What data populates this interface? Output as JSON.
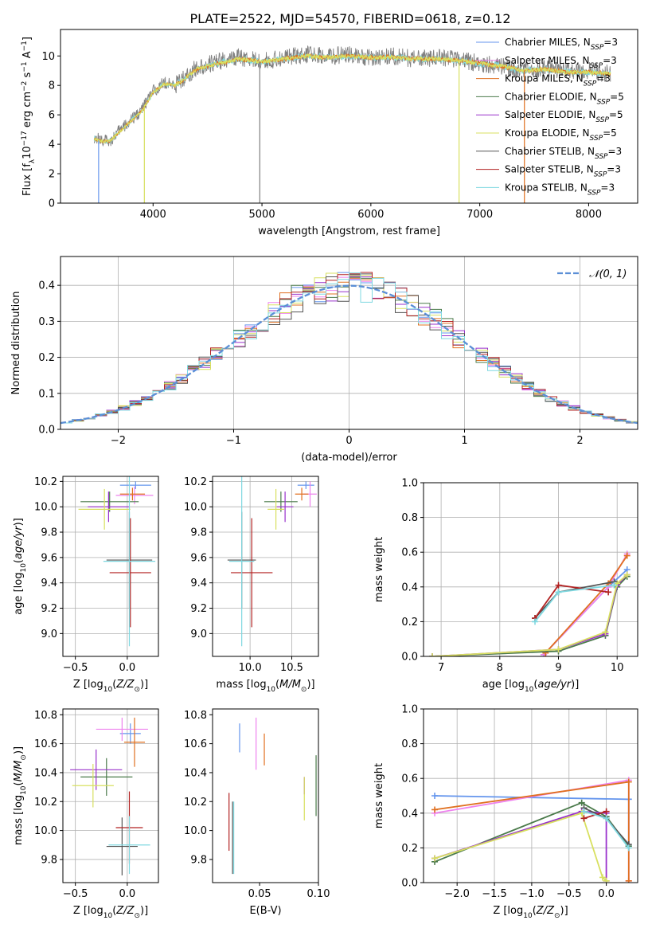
{
  "figure_title": "PLATE=2522, MJD=54570, FIBERID=0618, z=0.12",
  "palette": {
    "Chabrier MILES": "#6495ed",
    "Salpeter MILES": "#ee82ee",
    "Kroupa MILES": "#e07020",
    "Chabrier ELODIE": "#4a7a4a",
    "Salpeter ELODIE": "#9932cc",
    "Kroupa ELODIE": "#d8e060",
    "Chabrier STELIB": "#555555",
    "Salpeter STELIB": "#b22222",
    "Kroupa STELIB": "#7fd8e0"
  },
  "chart_data": [
    {
      "id": "spectrum",
      "type": "line",
      "title": "PLATE=2522, MJD=54570, FIBERID=0618, z=0.12",
      "xlabel": "wavelength [Angstrom, rest frame]",
      "ylabel": "Flux [fλ10⁻¹⁷ erg cm⁻² s⁻¹ A⁻¹]",
      "xlim": [
        3150,
        8450
      ],
      "ylim": [
        0,
        11.8
      ],
      "xticks": [
        4000,
        5000,
        6000,
        7000,
        8000
      ],
      "yticks": [
        0,
        2,
        4,
        6,
        8,
        10
      ],
      "legend_position": "right",
      "legend": [
        {
          "label": "Chabrier MILES, N",
          "sub": "SSP",
          "tail": "=3"
        },
        {
          "label": "Salpeter MILES, N",
          "sub": "SSP",
          "tail": "=3"
        },
        {
          "label": "Kroupa MILES, N",
          "sub": "SSP",
          "tail": "=3"
        },
        {
          "label": "Chabrier ELODIE, N",
          "sub": "SSP",
          "tail": "=5"
        },
        {
          "label": "Salpeter ELODIE, N",
          "sub": "SSP",
          "tail": "=5"
        },
        {
          "label": "Kroupa ELODIE, N",
          "sub": "SSP",
          "tail": "=5"
        },
        {
          "label": "Chabrier STELIB, N",
          "sub": "SSP",
          "tail": "=3"
        },
        {
          "label": "Salpeter STELIB, N",
          "sub": "SSP",
          "tail": "=3"
        },
        {
          "label": "Kroupa STELIB, N",
          "sub": "SSP",
          "tail": "=3"
        }
      ],
      "x": [
        3460,
        3520,
        3600,
        3700,
        3800,
        3900,
        4000,
        4100,
        4200,
        4300,
        4400,
        4600,
        4800,
        5000,
        5200,
        5400,
        5600,
        5800,
        6000,
        6200,
        6400,
        6600,
        6800,
        7000,
        7200,
        7400,
        7600,
        7800,
        8000,
        8200
      ],
      "data_flux": [
        4.5,
        4.3,
        4.2,
        5.0,
        5.6,
        6.4,
        7.6,
        8.2,
        8.0,
        8.6,
        9.2,
        9.6,
        9.9,
        9.6,
        9.9,
        10.1,
        10.0,
        10.1,
        9.9,
        10.0,
        9.8,
        9.9,
        9.8,
        9.5,
        9.3,
        9.0,
        9.2,
        8.9,
        9.0,
        8.8
      ],
      "model_flux": [
        4.4,
        4.2,
        4.2,
        4.9,
        5.6,
        6.3,
        7.5,
        8.1,
        8.0,
        8.5,
        9.1,
        9.5,
        9.8,
        9.6,
        9.8,
        10.0,
        9.9,
        10.0,
        9.9,
        9.9,
        9.8,
        9.8,
        9.7,
        9.5,
        9.3,
        9.0,
        9.1,
        8.9,
        8.9,
        8.8
      ],
      "dropouts": [
        3500,
        3920,
        4980,
        6810,
        7410
      ]
    },
    {
      "id": "residuals",
      "type": "histogram",
      "xlabel": "(data-model)/error",
      "ylabel": "Normed distribution",
      "xlim": [
        -2.5,
        2.5
      ],
      "ylim": [
        0,
        0.48
      ],
      "xticks": [
        -2,
        -1,
        0,
        1,
        2
      ],
      "yticks": [
        0.0,
        0.1,
        0.2,
        0.3,
        0.4
      ],
      "grid": true,
      "legend_position": "top-right",
      "gaussian_label": "𝒩(0, 1)",
      "bin_width": 0.1
    },
    {
      "id": "age-vs-Z",
      "type": "errorbar",
      "xlabel": "Z [log10(Z/Z⊙)]",
      "ylabel": "age  [log10(age/yr)]",
      "xlim": [
        -0.62,
        0.3
      ],
      "ylim": [
        8.82,
        10.24
      ],
      "xticks": [
        -0.5,
        0.0
      ],
      "yticks": [
        9.0,
        9.2,
        9.4,
        9.6,
        9.8,
        10.0,
        10.2
      ],
      "grid": true,
      "points": [
        {
          "model": "Chabrier MILES",
          "x": 0.08,
          "y": 10.17,
          "xerr": 0.15,
          "yerr": 0.03
        },
        {
          "model": "Salpeter MILES",
          "x": 0.07,
          "y": 10.09,
          "xerr": 0.18,
          "yerr": 0.07
        },
        {
          "model": "Kroupa MILES",
          "x": 0.05,
          "y": 10.1,
          "xerr": 0.12,
          "yerr": 0.05
        },
        {
          "model": "Chabrier ELODIE",
          "x": -0.17,
          "y": 10.04,
          "xerr": 0.28,
          "yerr": 0.08
        },
        {
          "model": "Salpeter ELODIE",
          "x": -0.18,
          "y": 10.0,
          "xerr": 0.2,
          "yerr": 0.12
        },
        {
          "model": "Kroupa ELODIE",
          "x": -0.22,
          "y": 9.98,
          "xerr": 0.25,
          "yerr": 0.16
        },
        {
          "model": "Chabrier STELIB",
          "x": 0.02,
          "y": 9.58,
          "xerr": 0.22,
          "yerr": 0.38
        },
        {
          "model": "Salpeter STELIB",
          "x": 0.03,
          "y": 9.48,
          "xerr": 0.2,
          "yerr": 0.43
        },
        {
          "model": "Kroupa STELIB",
          "x": 0.02,
          "y": 9.57,
          "xerr": 0.25,
          "yerr": 0.67
        }
      ]
    },
    {
      "id": "age-vs-mass",
      "type": "errorbar",
      "xlabel": "mass [log10(M/M⊙)]",
      "ylabel": "",
      "xlim": [
        9.55,
        10.82
      ],
      "ylim": [
        8.82,
        10.24
      ],
      "xticks": [
        10.0,
        10.5
      ],
      "yticks": [
        9.0,
        9.2,
        9.4,
        9.6,
        9.8,
        10.0,
        10.2
      ],
      "grid": true,
      "points": [
        {
          "model": "Chabrier MILES",
          "x": 10.67,
          "y": 10.17,
          "xerr": 0.1,
          "yerr": 0.03
        },
        {
          "model": "Salpeter MILES",
          "x": 10.72,
          "y": 10.1,
          "xerr": 0.08,
          "yerr": 0.1
        },
        {
          "model": "Kroupa MILES",
          "x": 10.62,
          "y": 10.1,
          "xerr": 0.08,
          "yerr": 0.05
        },
        {
          "model": "Chabrier ELODIE",
          "x": 10.37,
          "y": 10.04,
          "xerr": 0.2,
          "yerr": 0.08
        },
        {
          "model": "Salpeter ELODIE",
          "x": 10.42,
          "y": 10.0,
          "xerr": 0.1,
          "yerr": 0.12
        },
        {
          "model": "Kroupa ELODIE",
          "x": 10.31,
          "y": 9.98,
          "xerr": 0.1,
          "yerr": 0.16
        },
        {
          "model": "Chabrier STELIB",
          "x": 9.9,
          "y": 9.58,
          "xerr": 0.17,
          "yerr": 0.38
        },
        {
          "model": "Salpeter STELIB",
          "x": 10.02,
          "y": 9.48,
          "xerr": 0.25,
          "yerr": 0.43
        },
        {
          "model": "Kroupa STELIB",
          "x": 9.9,
          "y": 9.57,
          "xerr": 0.15,
          "yerr": 0.67
        }
      ]
    },
    {
      "id": "mass-weight-vs-age",
      "type": "line",
      "xlabel": "age  [log10(age/yr)]",
      "ylabel": "mass weight",
      "xlim": [
        6.7,
        10.35
      ],
      "ylim": [
        0.0,
        1.0
      ],
      "xticks": [
        7,
        8,
        9,
        10
      ],
      "yticks": [
        0.0,
        0.2,
        0.4,
        0.6,
        0.8,
        1.0
      ],
      "grid": true,
      "series": [
        {
          "model": "Chabrier MILES",
          "x": [
            8.75,
            9.85,
            10.17
          ],
          "y": [
            0.01,
            0.4,
            0.5
          ]
        },
        {
          "model": "Salpeter MILES",
          "x": [
            8.75,
            9.85,
            10.17
          ],
          "y": [
            0.01,
            0.4,
            0.59
          ]
        },
        {
          "model": "Kroupa MILES",
          "x": [
            8.78,
            9.85,
            10.17
          ],
          "y": [
            0.02,
            0.42,
            0.58
          ]
        },
        {
          "model": "Chabrier ELODIE",
          "x": [
            6.85,
            9.0,
            9.8,
            10.0,
            10.17
          ],
          "y": [
            0.0,
            0.03,
            0.12,
            0.4,
            0.46
          ]
        },
        {
          "model": "Salpeter ELODIE",
          "x": [
            6.85,
            9.0,
            9.8,
            10.0,
            10.17
          ],
          "y": [
            0.0,
            0.04,
            0.13,
            0.41,
            0.47
          ]
        },
        {
          "model": "Kroupa ELODIE",
          "x": [
            6.85,
            9.0,
            9.8,
            10.0,
            10.17
          ],
          "y": [
            0.0,
            0.04,
            0.14,
            0.42,
            0.47
          ]
        },
        {
          "model": "Chabrier STELIB",
          "x": [
            8.6,
            9.0,
            9.95
          ],
          "y": [
            0.22,
            0.37,
            0.43
          ]
        },
        {
          "model": "Salpeter STELIB",
          "x": [
            8.6,
            9.0,
            9.85
          ],
          "y": [
            0.22,
            0.41,
            0.37
          ]
        },
        {
          "model": "Kroupa STELIB",
          "x": [
            8.6,
            9.0,
            9.95
          ],
          "y": [
            0.2,
            0.37,
            0.41
          ]
        }
      ]
    },
    {
      "id": "mass-vs-Z",
      "type": "errorbar",
      "xlabel": "Z [log10(Z/Z⊙)]",
      "ylabel": "mass [log10(M/M⊙)]",
      "xlim": [
        -0.62,
        0.3
      ],
      "ylim": [
        9.64,
        10.84
      ],
      "xticks": [
        -0.5,
        0.0
      ],
      "yticks": [
        9.8,
        10.0,
        10.2,
        10.4,
        10.6,
        10.8
      ],
      "grid": true,
      "points": [
        {
          "model": "Chabrier MILES",
          "x": 0.03,
          "y": 10.67,
          "xerr": 0.1,
          "yerr": 0.07
        },
        {
          "model": "Salpeter MILES",
          "x": -0.05,
          "y": 10.7,
          "xerr": 0.25,
          "yerr": 0.08
        },
        {
          "model": "Kroupa MILES",
          "x": 0.07,
          "y": 10.61,
          "xerr": 0.1,
          "yerr": 0.17
        },
        {
          "model": "Chabrier ELODIE",
          "x": -0.2,
          "y": 10.37,
          "xerr": 0.25,
          "yerr": 0.13
        },
        {
          "model": "Salpeter ELODIE",
          "x": -0.3,
          "y": 10.42,
          "xerr": 0.25,
          "yerr": 0.14
        },
        {
          "model": "Kroupa ELODIE",
          "x": -0.33,
          "y": 10.31,
          "xerr": 0.2,
          "yerr": 0.15
        },
        {
          "model": "Chabrier STELIB",
          "x": -0.05,
          "y": 9.89,
          "xerr": 0.15,
          "yerr": 0.2
        },
        {
          "model": "Salpeter STELIB",
          "x": 0.02,
          "y": 10.02,
          "xerr": 0.13,
          "yerr": 0.25
        },
        {
          "model": "Kroupa STELIB",
          "x": 0.02,
          "y": 9.9,
          "xerr": 0.2,
          "yerr": 0.2
        }
      ]
    },
    {
      "id": "mass-vs-EBV",
      "type": "errorbar",
      "xlabel": "E(B-V)",
      "ylabel": "",
      "xlim": [
        0.01,
        0.1
      ],
      "ylim": [
        9.64,
        10.84
      ],
      "xticks": [
        0.05,
        0.1
      ],
      "yticks": [
        9.8,
        10.0,
        10.2,
        10.4,
        10.6,
        10.8
      ],
      "grid": false,
      "points": [
        {
          "model": "Chabrier MILES",
          "x": 0.033,
          "y": 10.64,
          "xerr": 0,
          "yerr": 0.1
        },
        {
          "model": "Salpeter MILES",
          "x": 0.047,
          "y": 10.6,
          "xerr": 0,
          "yerr": 0.18
        },
        {
          "model": "Kroupa MILES",
          "x": 0.054,
          "y": 10.56,
          "xerr": 0,
          "yerr": 0.11
        },
        {
          "model": "Chabrier ELODIE",
          "x": 0.098,
          "y": 10.31,
          "xerr": 0,
          "yerr": 0.21
        },
        {
          "model": "Salpeter ELODIE",
          "x": 0.088,
          "y": 10.31,
          "xerr": 0,
          "yerr": 0.06
        },
        {
          "model": "Kroupa ELODIE",
          "x": 0.088,
          "y": 10.22,
          "xerr": 0,
          "yerr": 0.15
        },
        {
          "model": "Chabrier STELIB",
          "x": 0.027,
          "y": 9.95,
          "xerr": 0,
          "yerr": 0.25
        },
        {
          "model": "Salpeter STELIB",
          "x": 0.024,
          "y": 10.06,
          "xerr": 0,
          "yerr": 0.2
        },
        {
          "model": "Kroupa STELIB",
          "x": 0.028,
          "y": 9.95,
          "xerr": 0,
          "yerr": 0.25
        }
      ]
    },
    {
      "id": "mass-weight-vs-Z",
      "type": "line",
      "xlabel": "Z [log10(Z/Z⊙)]",
      "ylabel": "mass weight",
      "xlim": [
        -2.45,
        0.42
      ],
      "ylim": [
        0.0,
        1.0
      ],
      "xticks": [
        -2.0,
        -1.5,
        -1.0,
        -0.5,
        0.0
      ],
      "yticks": [
        0.0,
        0.2,
        0.4,
        0.6,
        0.8,
        1.0
      ],
      "grid": true,
      "series": [
        {
          "model": "Chabrier MILES",
          "x": [
            -2.3,
            0.3,
            0.3
          ],
          "y": [
            0.5,
            0.48,
            0.21
          ]
        },
        {
          "model": "Salpeter MILES",
          "x": [
            -2.3,
            0.3,
            0.3
          ],
          "y": [
            0.4,
            0.59,
            0.01
          ]
        },
        {
          "model": "Kroupa MILES",
          "x": [
            -2.3,
            0.3,
            0.3
          ],
          "y": [
            0.42,
            0.58,
            0.01
          ]
        },
        {
          "model": "Chabrier ELODIE",
          "x": [
            -2.3,
            -0.33,
            0.0,
            0.3
          ],
          "y": [
            0.12,
            0.46,
            0.38,
            0.21
          ]
        },
        {
          "model": "Salpeter ELODIE",
          "x": [
            -2.3,
            -0.33,
            0.0,
            0.0
          ],
          "y": [
            0.14,
            0.41,
            0.4,
            0.01
          ]
        },
        {
          "model": "Kroupa ELODIE",
          "x": [
            -2.3,
            -0.33,
            -0.05,
            0.0
          ],
          "y": [
            0.14,
            0.4,
            0.03,
            0.01
          ]
        },
        {
          "model": "Chabrier STELIB",
          "x": [
            -0.3,
            0.0,
            0.3
          ],
          "y": [
            0.43,
            0.37,
            0.22
          ]
        },
        {
          "model": "Salpeter STELIB",
          "x": [
            -0.3,
            0.0
          ],
          "y": [
            0.37,
            0.41
          ]
        },
        {
          "model": "Kroupa STELIB",
          "x": [
            -0.3,
            0.0,
            0.3
          ],
          "y": [
            0.41,
            0.37,
            0.2
          ]
        }
      ]
    }
  ]
}
